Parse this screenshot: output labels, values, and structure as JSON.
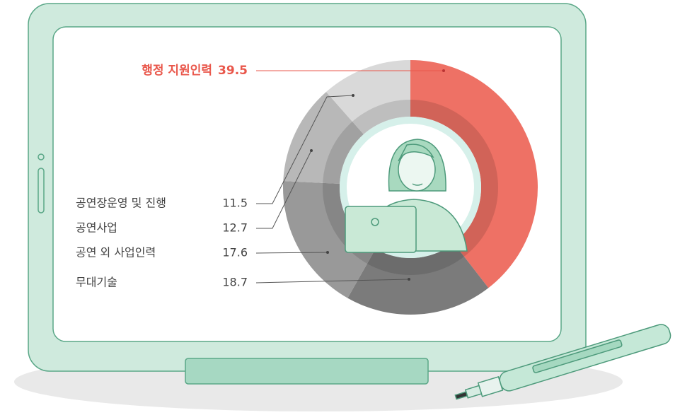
{
  "chart_data": {
    "type": "donut",
    "categories": [
      "행정 지원인력",
      "무대기술",
      "공연 외 사업인력",
      "공연사업",
      "공연장운영 및 진행"
    ],
    "values": [
      39.5,
      18.7,
      17.6,
      12.7,
      11.5
    ],
    "colors": [
      "#ee7165",
      "#7b7b7b",
      "#999999",
      "#b8b8b8",
      "#d9d9d9"
    ],
    "highlight_color": "#e9574b"
  }
}
